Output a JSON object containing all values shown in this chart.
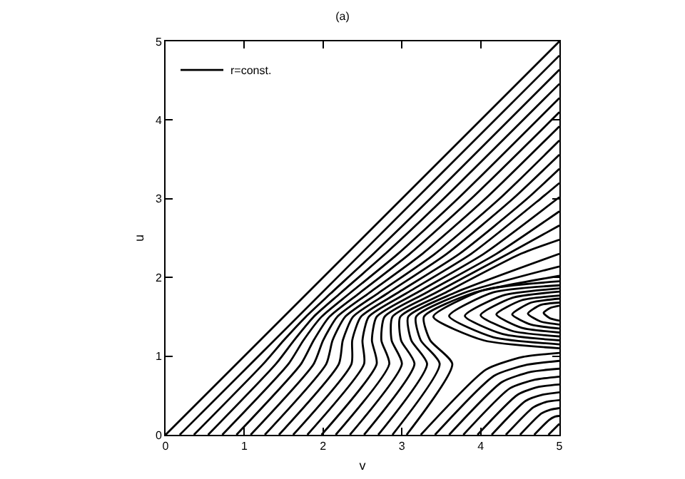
{
  "chart_data": {
    "type": "line",
    "title": "(a)",
    "xlabel": "v",
    "ylabel": "u",
    "xlim": [
      0,
      5
    ],
    "xticks": [
      0,
      1,
      2,
      3,
      4,
      5
    ],
    "ylim": [
      0,
      5
    ],
    "yticks": [
      0,
      1,
      2,
      3,
      4,
      5
    ],
    "grid": false,
    "legend": "top left",
    "series": [
      {
        "color": "#000000",
        "x": [
          0,
          5
        ],
        "values": [
          0,
          5
        ]
      },
      {
        "name": "r=const.",
        "color": "#000000",
        "x": [
          0.18,
          5
        ],
        "values": [
          0,
          4.82
        ]
      },
      {
        "color": "#000000",
        "x": [
          0.36,
          1.24,
          1.5,
          1.78,
          2.1,
          2.64,
          3.36,
          5
        ],
        "values": [
          0,
          0.9,
          1.2,
          1.5,
          1.8,
          2.3,
          3.0,
          4.64
        ]
      },
      {
        "color": "#000000",
        "x": [
          0.54,
          1.4,
          1.63,
          1.88,
          2.22,
          2.79,
          3.53,
          5
        ],
        "values": [
          0,
          0.9,
          1.2,
          1.5,
          1.8,
          2.3,
          3.0,
          4.46
        ]
      },
      {
        "color": "#000000",
        "x": [
          0.72,
          1.56,
          1.75,
          1.98,
          2.34,
          2.95,
          3.71,
          5
        ],
        "values": [
          0,
          0.9,
          1.2,
          1.5,
          1.8,
          2.3,
          3.0,
          4.28
        ]
      },
      {
        "color": "#000000",
        "x": [
          0.9,
          1.72,
          1.88,
          2.08,
          2.46,
          3.1,
          3.88,
          5
        ],
        "values": [
          0,
          0.9,
          1.2,
          1.5,
          1.8,
          2.3,
          3.0,
          4.1
        ]
      },
      {
        "color": "#000000",
        "x": [
          1.08,
          1.88,
          2.0,
          2.18,
          2.58,
          3.26,
          4.06,
          5
        ],
        "values": [
          0,
          0.9,
          1.2,
          1.5,
          1.8,
          2.3,
          3.0,
          3.92
        ]
      },
      {
        "color": "#000000",
        "x": [
          1.26,
          2.04,
          2.12,
          2.28,
          2.7,
          3.42,
          4.24,
          5
        ],
        "values": [
          0,
          0.9,
          1.2,
          1.5,
          1.8,
          2.3,
          3.0,
          3.74
        ]
      },
      {
        "color": "#000000",
        "x": [
          1.44,
          2.2,
          2.25,
          2.38,
          2.82,
          3.57,
          4.41,
          5
        ],
        "values": [
          0,
          0.9,
          1.2,
          1.5,
          1.8,
          2.3,
          3.0,
          3.56
        ]
      },
      {
        "color": "#000000",
        "x": [
          1.62,
          2.36,
          2.37,
          2.48,
          2.94,
          3.73,
          4.59,
          5
        ],
        "values": [
          0,
          0.9,
          1.2,
          1.5,
          1.8,
          2.3,
          3.0,
          3.38
        ]
      },
      {
        "color": "#000000",
        "x": [
          1.8,
          2.52,
          2.5,
          2.58,
          3.06,
          3.88,
          4.76,
          5
        ],
        "values": [
          0,
          0.9,
          1.2,
          1.5,
          1.8,
          2.3,
          3.0,
          3.2
        ]
      },
      {
        "color": "#000000",
        "x": [
          1.98,
          2.68,
          2.62,
          2.68,
          3.18,
          4.04,
          5
        ],
        "values": [
          0,
          0.9,
          1.2,
          1.5,
          1.8,
          2.3,
          3.02
        ]
      },
      {
        "color": "#000000",
        "x": [
          2.16,
          2.84,
          2.74,
          2.78,
          3.3,
          4.2,
          5
        ],
        "values": [
          0,
          0.9,
          1.2,
          1.5,
          1.8,
          2.3,
          2.84
        ]
      },
      {
        "color": "#000000",
        "x": [
          2.34,
          3.0,
          2.87,
          2.88,
          3.42,
          4.35,
          5
        ],
        "values": [
          0,
          0.9,
          1.2,
          1.5,
          1.8,
          2.3,
          2.66
        ]
      },
      {
        "color": "#000000",
        "x": [
          2.52,
          3.16,
          2.99,
          2.98,
          3.54,
          4.51,
          5
        ],
        "values": [
          0,
          0.9,
          1.2,
          1.5,
          1.8,
          2.3,
          2.48
        ]
      },
      {
        "color": "#000000",
        "x": [
          2.7,
          3.32,
          3.12,
          3.08,
          3.66,
          5
        ],
        "values": [
          0,
          0.9,
          1.2,
          1.5,
          1.8,
          2.3
        ]
      },
      {
        "color": "#000000",
        "x": [
          2.88,
          3.48,
          3.24,
          3.18,
          3.78,
          5
        ],
        "values": [
          0,
          0.9,
          1.2,
          1.5,
          1.8,
          2.14
        ]
      },
      {
        "color": "#000000",
        "x": [
          3.06,
          3.64,
          3.36,
          3.28,
          3.9,
          5
        ],
        "values": [
          0,
          0.9,
          1.2,
          1.5,
          1.8,
          2.02
        ]
      },
      {
        "color": "#000000",
        "x": [
          3.24,
          4.07,
          4.54,
          5
        ],
        "values": [
          0,
          0.83,
          0.99,
          1.04
        ]
      },
      {
        "color": "#000000",
        "x": [
          3.42,
          4.17,
          4.59,
          5
        ],
        "values": [
          0,
          0.75,
          0.89,
          0.94
        ]
      },
      {
        "color": "#000000",
        "x": [
          3.6,
          4.27,
          4.64,
          5
        ],
        "values": [
          0,
          0.67,
          0.8,
          0.84
        ]
      },
      {
        "color": "#000000",
        "x": [
          3.78,
          4.37,
          4.69,
          5
        ],
        "values": [
          0,
          0.59,
          0.7,
          0.74
        ]
      },
      {
        "color": "#000000",
        "x": [
          3.96,
          4.47,
          4.74,
          5
        ],
        "values": [
          0,
          0.51,
          0.61,
          0.64
        ]
      },
      {
        "color": "#000000",
        "x": [
          4.14,
          4.57,
          4.79,
          5
        ],
        "values": [
          0,
          0.43,
          0.51,
          0.54
        ]
      },
      {
        "color": "#000000",
        "x": [
          4.32,
          4.67,
          4.84,
          5
        ],
        "values": [
          0,
          0.35,
          0.42,
          0.44
        ]
      },
      {
        "color": "#000000",
        "x": [
          4.5,
          4.77,
          4.89,
          5
        ],
        "values": [
          0,
          0.27,
          0.32,
          0.34
        ]
      },
      {
        "color": "#000000",
        "x": [
          4.68,
          4.87,
          4.94,
          5
        ],
        "values": [
          0,
          0.19,
          0.23,
          0.24
        ]
      },
      {
        "color": "#000000",
        "x": [
          4.86,
          5
        ],
        "values": [
          0,
          0.14
        ]
      },
      {
        "color": "#000000",
        "x": [
          5,
          4.04,
          3.4,
          4.04,
          5
        ],
        "values": [
          1.95,
          1.84,
          1.5,
          1.2,
          1.1
        ]
      },
      {
        "color": "#000000",
        "x": [
          5,
          4.16,
          3.6,
          4.16,
          5
        ],
        "values": [
          1.9,
          1.81,
          1.51,
          1.24,
          1.15
        ]
      },
      {
        "color": "#000000",
        "x": [
          5,
          4.28,
          3.8,
          4.28,
          5
        ],
        "values": [
          1.86,
          1.77,
          1.51,
          1.28,
          1.2
        ]
      },
      {
        "color": "#000000",
        "x": [
          5,
          4.4,
          4.0,
          4.4,
          5
        ],
        "values": [
          1.82,
          1.74,
          1.52,
          1.32,
          1.25
        ]
      },
      {
        "color": "#000000",
        "x": [
          5,
          4.52,
          4.2,
          4.52,
          5
        ],
        "values": [
          1.77,
          1.71,
          1.53,
          1.36,
          1.3
        ]
      },
      {
        "color": "#000000",
        "x": [
          5,
          4.64,
          4.4,
          4.64,
          5
        ],
        "values": [
          1.73,
          1.68,
          1.53,
          1.4,
          1.35
        ]
      },
      {
        "color": "#000000",
        "x": [
          5,
          4.76,
          4.6,
          4.76,
          5
        ],
        "values": [
          1.68,
          1.65,
          1.54,
          1.44,
          1.4
        ]
      },
      {
        "color": "#000000",
        "x": [
          5,
          4.88,
          4.8,
          4.88,
          5
        ],
        "values": [
          1.64,
          1.61,
          1.55,
          1.48,
          1.45
        ]
      }
    ]
  }
}
